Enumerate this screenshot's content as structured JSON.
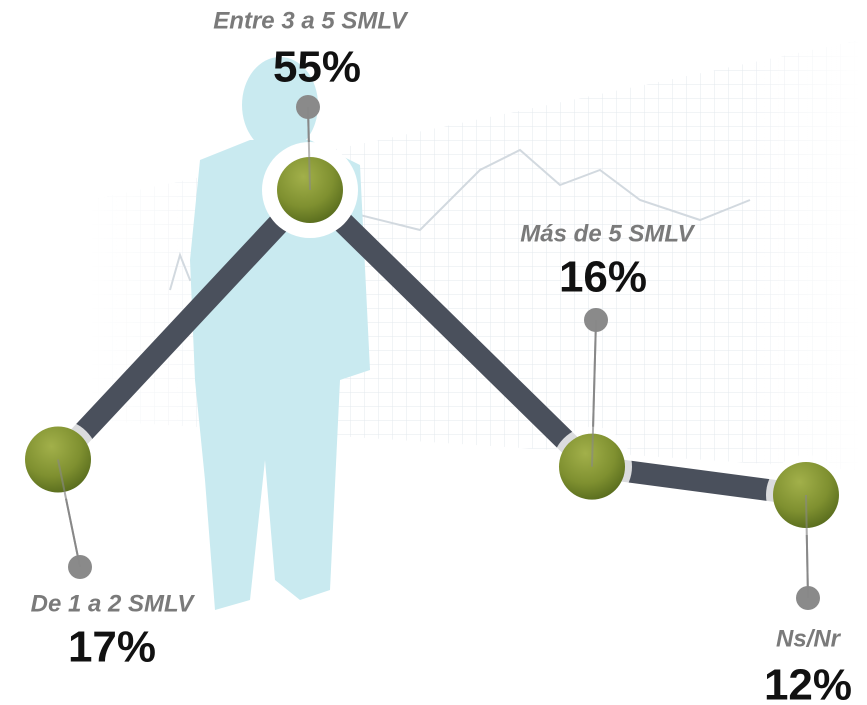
{
  "chart_data": {
    "type": "line",
    "categories": [
      "De 1 a 2 SMLV",
      "Entre 3 a 5 SMLV",
      "Más de 5 SMLV",
      "Ns/Nr"
    ],
    "values": [
      17,
      55,
      16,
      12
    ],
    "value_labels": [
      "17%",
      "55%",
      "16%",
      "12%"
    ],
    "color": "#4a505c"
  }
}
